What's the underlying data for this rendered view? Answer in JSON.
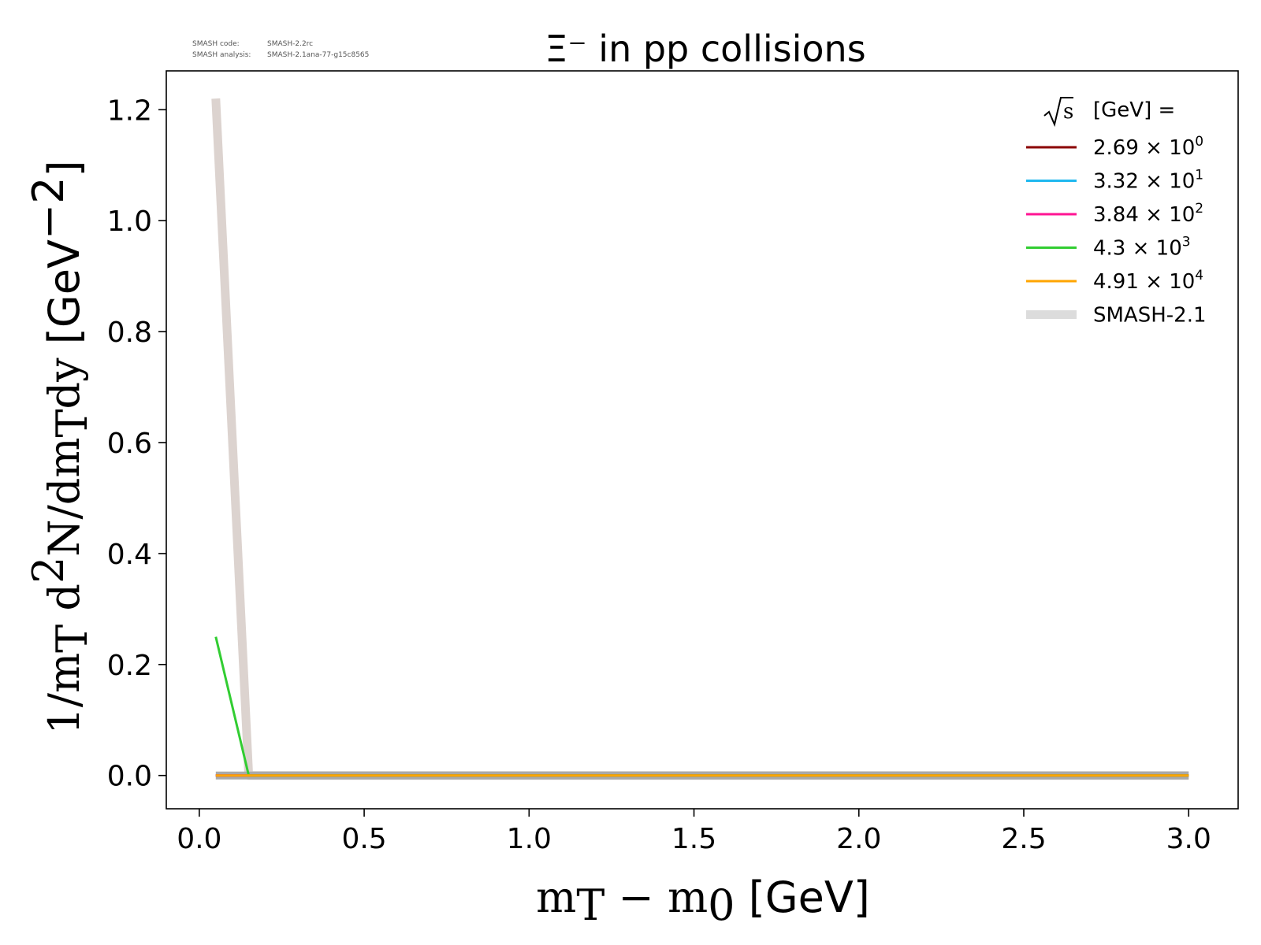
{
  "meta": {
    "code_key": "SMASH code:",
    "code_value": "SMASH-2.2rc",
    "analysis_key": "SMASH analysis:",
    "analysis_value": "SMASH-2.1ana-77-g15c8565"
  },
  "chart_data": {
    "type": "line",
    "title": "Ξ⁻ in pp collisions",
    "xlabel": {
      "main": "m",
      "sub": "T",
      "minus": " − m",
      "sub2": "0",
      "unit": " [GeV]"
    },
    "ylabel": {
      "p1": "1/m",
      "p1sub": "T",
      "p2": " d",
      "p2sup": "2",
      "p3": "N/dm",
      "p3sub": "T",
      "p4": "dy",
      "unit": " [GeV",
      "unitsup": "−2",
      "unitclose": "]"
    },
    "xlim": [
      -0.1,
      3.15
    ],
    "ylim": [
      -0.06,
      1.27
    ],
    "xticks": [
      0.0,
      0.5,
      1.0,
      1.5,
      2.0,
      2.5,
      3.0
    ],
    "xtick_labels": [
      "0.0",
      "0.5",
      "1.0",
      "1.5",
      "2.0",
      "2.5",
      "3.0"
    ],
    "yticks": [
      0.0,
      0.2,
      0.4,
      0.6,
      0.8,
      1.0,
      1.2
    ],
    "ytick_labels": [
      "0.0",
      "0.2",
      "0.4",
      "0.6",
      "0.8",
      "1.0",
      "1.2"
    ],
    "grid": false,
    "legend": {
      "placement": "top-right",
      "title_root": "s",
      "title_rest": "[GeV] ="
    },
    "reference": {
      "name": "SMASH-2.1",
      "color": "#dcd3cf",
      "x": [
        0.05,
        0.15,
        0.25,
        0.5,
        1.0,
        1.5,
        2.0,
        2.5,
        3.0
      ],
      "y": [
        1.22,
        0.0,
        0.0,
        0.0,
        0.0,
        0.0,
        0.0,
        0.0,
        0.0
      ]
    },
    "band": {
      "color": "#a9a9a9",
      "x": [
        0.05,
        3.0
      ],
      "y": [
        0.0,
        0.0
      ]
    },
    "series": [
      {
        "name_mant": "2.69",
        "name_exp": "0",
        "color": "#8b0000",
        "x": [
          0.05,
          3.0
        ],
        "y": [
          0.0,
          0.0
        ]
      },
      {
        "name_mant": "3.32",
        "name_exp": "1",
        "color": "#1fb8ef",
        "x": [
          0.05,
          3.0
        ],
        "y": [
          0.0,
          0.0
        ]
      },
      {
        "name_mant": "3.84",
        "name_exp": "2",
        "color": "#ff1493",
        "x": [
          0.05,
          3.0
        ],
        "y": [
          0.0,
          0.0
        ]
      },
      {
        "name_mant": "4.3",
        "name_exp": "3",
        "color": "#32cd32",
        "x": [
          0.05,
          0.15,
          3.0
        ],
        "y": [
          0.25,
          0.0,
          0.0
        ]
      },
      {
        "name_mant": "4.91",
        "name_exp": "4",
        "color": "#ffa500",
        "x": [
          0.05,
          3.0
        ],
        "y": [
          0.0,
          0.0
        ]
      }
    ]
  }
}
